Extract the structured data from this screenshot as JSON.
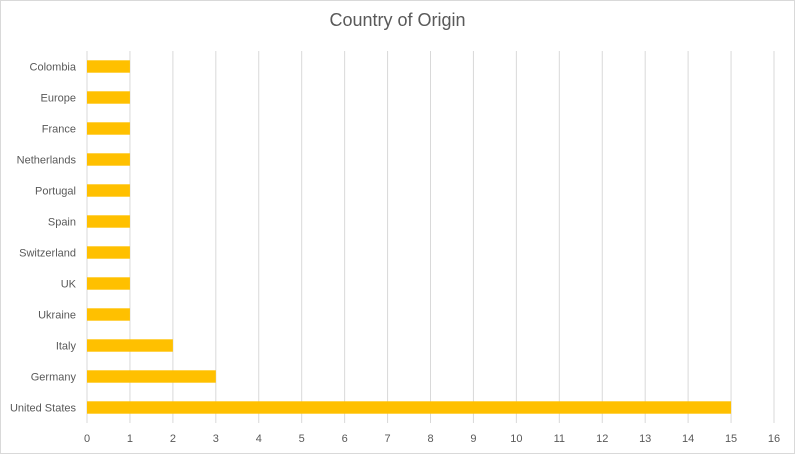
{
  "chart_data": {
    "type": "bar",
    "orientation": "horizontal",
    "title": "Country of Origin",
    "categories": [
      "Colombia",
      "Europe",
      "France",
      "Netherlands",
      "Portugal",
      "Spain",
      "Switzerland",
      "UK",
      "Ukraine",
      "Italy",
      "Germany",
      "United States"
    ],
    "values": [
      1,
      1,
      1,
      1,
      1,
      1,
      1,
      1,
      1,
      2,
      3,
      15
    ],
    "xlim": [
      0,
      16
    ],
    "x_ticks": [
      "0",
      "1",
      "2",
      "3",
      "4",
      "5",
      "6",
      "7",
      "8",
      "9",
      "10",
      "11",
      "12",
      "13",
      "14",
      "15",
      "16"
    ],
    "grid": "vertical",
    "legend": "none",
    "bar_color": "#FFC000",
    "grid_color": "#d9d9d9"
  }
}
